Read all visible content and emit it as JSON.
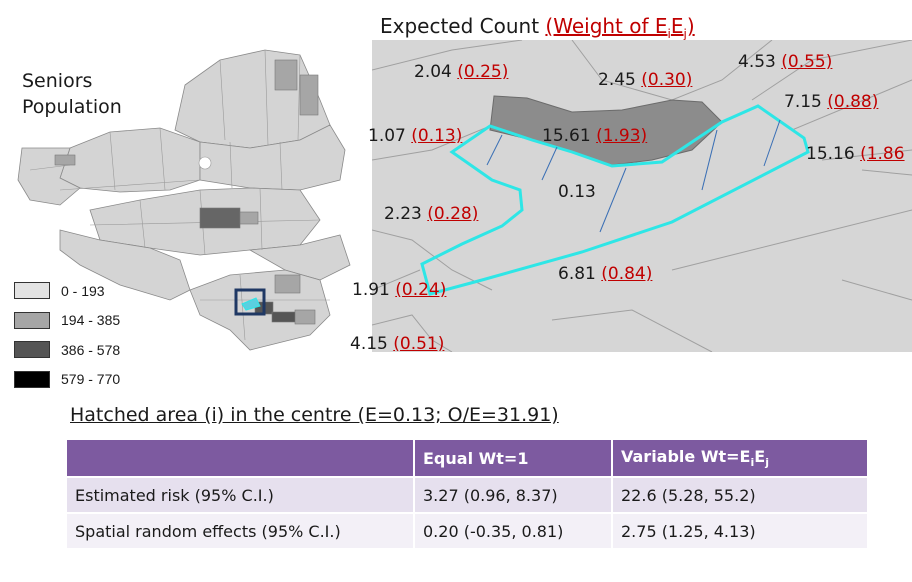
{
  "left_map": {
    "title_line1": "Seniors",
    "title_line2": "Population",
    "legend": [
      {
        "label": "0 - 193",
        "color": "#e3e3e3"
      },
      {
        "label": "194 - 385",
        "color": "#a6a6a6"
      },
      {
        "label": "386 - 578",
        "color": "#555555"
      },
      {
        "label": "579 - 770",
        "color": "#000000"
      }
    ]
  },
  "right_map": {
    "title_prefix": "Expected Count ",
    "title_weight": "(Weight of E",
    "title_sub_i": "i",
    "title_mid": "E",
    "title_sub_j": "j",
    "title_close": ")",
    "areas": [
      {
        "count": "2.04",
        "weight": "(0.25)"
      },
      {
        "count": "2.45",
        "weight": "(0.30)"
      },
      {
        "count": "4.53",
        "weight": "(0.55)"
      },
      {
        "count": "7.15",
        "weight": "(0.88)"
      },
      {
        "count": "1.07",
        "weight": "(0.13)"
      },
      {
        "count": "15.61",
        "weight": "(1.93)"
      },
      {
        "count": "15.16",
        "weight": "(1.86"
      },
      {
        "count": "0.13",
        "weight": ""
      },
      {
        "count": "2.23",
        "weight": "(0.28)"
      },
      {
        "count": "6.81",
        "weight": "(0.84)"
      },
      {
        "count": "1.91",
        "weight": "(0.24)"
      },
      {
        "count": "4.15",
        "weight": "(0.51)"
      }
    ]
  },
  "subtitle": "Hatched area (i) in the centre (E=0.13; O/E=31.91)",
  "table": {
    "headers": {
      "col0": "",
      "col1": "Equal Wt=1",
      "col2_prefix": "Variable Wt=E",
      "col2_sub_i": "i",
      "col2_mid": "E",
      "col2_sub_j": "j"
    },
    "rows": [
      {
        "label": "Estimated risk (95% C.I.)",
        "equal": "3.27 (0.96, 8.37)",
        "variable": "22.6 (5.28, 55.2)"
      },
      {
        "label": "Spatial random effects (95% C.I.)",
        "equal": "0.20 (-0.35, 0.81)",
        "variable": "2.75 (1.25, 4.13)"
      }
    ]
  },
  "colors": {
    "highlight_boundary": "#2ee6e6",
    "weight_text": "#c00000",
    "table_header": "#7d5aa0"
  }
}
